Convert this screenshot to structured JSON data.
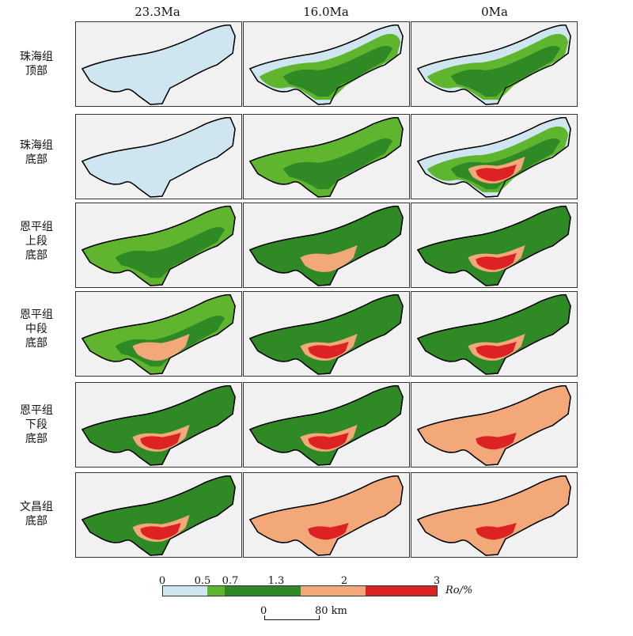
{
  "columns": [
    "23.3Ma",
    "16.0Ma",
    "0Ma"
  ],
  "rows": [
    "珠海组\n顶部",
    "珠海组\n底部",
    "恩平组\n上段\n底部",
    "恩平组\n中段\n底部",
    "恩平组\n下段\n底部",
    "文昌组\n底部"
  ],
  "maturity_levels": [
    [
      [
        0,
        0,
        0
      ],
      [
        0,
        1,
        2
      ],
      [
        0,
        0,
        2
      ]
    ],
    [
      [
        0,
        0,
        0
      ],
      [
        1,
        2,
        2
      ],
      [
        0,
        2,
        4
      ]
    ],
    [
      [
        1,
        2,
        2
      ],
      [
        2,
        3,
        3
      ],
      [
        2,
        4,
        4
      ]
    ],
    [
      [
        1,
        2,
        3
      ],
      [
        2,
        3,
        4
      ],
      [
        2,
        4,
        4
      ]
    ],
    [
      [
        2,
        4,
        4
      ],
      [
        2,
        4,
        4
      ],
      [
        3,
        4,
        4
      ]
    ],
    [
      [
        2,
        4,
        4
      ],
      [
        3,
        4,
        4
      ],
      [
        3,
        4,
        4
      ]
    ]
  ],
  "legend": {
    "ticks": [
      "0",
      "0.5",
      "0.7",
      "1.3",
      "2",
      "3"
    ],
    "unit": "Ro/%",
    "colors": {
      "0-0.5": "#cfe6f1",
      "0.5-0.7": "#5fb52d",
      "0.7-1.3": "#2f8a26",
      "1.3-2": "#f2a878",
      "2-3": "#dc2222"
    }
  },
  "scale_bar": {
    "start": "0",
    "end": "80 km"
  }
}
